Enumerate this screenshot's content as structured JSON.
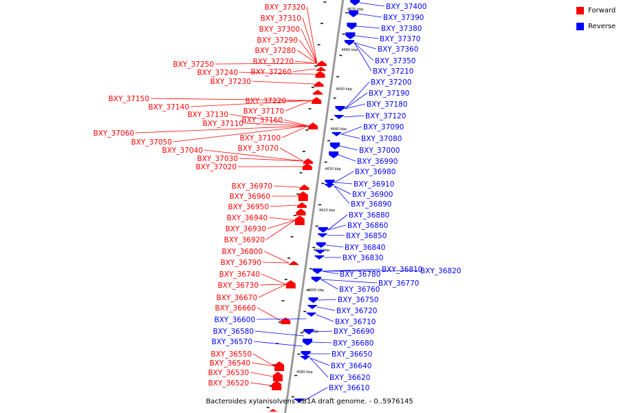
{
  "legend": [
    {
      "label": "Forward",
      "color": "#ff0000"
    },
    {
      "label": "Reverse",
      "color": "#0000ff"
    }
  ],
  "caption": "Bacteroides xylanisolvens XB1A draft genome. - 0..5976145",
  "scale_ticks": [
    "4670 kbp",
    "4660 kbp",
    "4650 kbp",
    "4640 kbp",
    "4630 kbp",
    "4620 kbp",
    "4610 kbp",
    "4600 kbp",
    "4590 kbp",
    "4580 kbp"
  ],
  "forward_labels": [
    "BXY_37320",
    "BXY_37310",
    "BXY_37300",
    "BXY_37290",
    "BXY_37280",
    "BXY_37270",
    "BXY_37250",
    "BXY_37260",
    "BXY_37240",
    "BXY_37230",
    "BXY_37150",
    "BXY_37220",
    "BXY_37140",
    "BXY_37170",
    "BXY_37130",
    "BXY_37160",
    "BXY_37110",
    "BXY_37060",
    "BXY_37100",
    "BXY_37050",
    "BXY_37070",
    "BXY_37040",
    "BXY_37030",
    "BXY_37020",
    "BXY_36970",
    "BXY_36960",
    "BXY_36950",
    "BXY_36940",
    "BXY_36930",
    "BXY_36920",
    "BXY_36800",
    "BXY_36790",
    "BXY_36740",
    "BXY_36730",
    "BXY_36670",
    "BXY_36660",
    "BXY_36550",
    "BXY_36540",
    "BXY_36530",
    "BXY_36520"
  ],
  "reverse_labels": [
    "BXY_37400",
    "BXY_37390",
    "BXY_37380",
    "BXY_37370",
    "BXY_37360",
    "BXY_37350",
    "BXY_37210",
    "BXY_37200",
    "BXY_37190",
    "BXY_37180",
    "BXY_37120",
    "BXY_37090",
    "BXY_37080",
    "BXY_37000",
    "BXY_36990",
    "BXY_36980",
    "BXY_36910",
    "BXY_36900",
    "BXY_36890",
    "BXY_36880",
    "BXY_36860",
    "BXY_36850",
    "BXY_36840",
    "BXY_36830",
    "BXY_36810",
    "BXY_36820",
    "BXY_36780",
    "BXY_36770",
    "BXY_36760",
    "BXY_36750",
    "BXY_36720",
    "BXY_36710",
    "BXY_36690",
    "BXY_36680",
    "BXY_36650",
    "BXY_36640",
    "BXY_36620",
    "BXY_36610"
  ],
  "reverse_left_labels": [
    "BXY_36600",
    "BXY_36580",
    "BXY_36570"
  ]
}
